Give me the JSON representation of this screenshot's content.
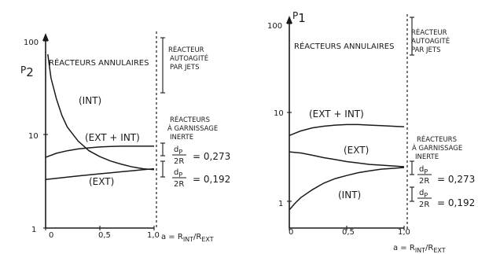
{
  "chart_data": [
    {
      "type": "line",
      "yscale": "log",
      "ylabel": "P",
      "ylabel_sub": "2",
      "xlabel": "a = R",
      "xlabel_sub1": "INT",
      "xlabel_mid": "/R",
      "xlabel_sub2": "EXT",
      "ylim": [
        1,
        100
      ],
      "xlim": [
        0,
        1.0
      ],
      "x_ticks": [
        "0",
        "0,5",
        "1,0"
      ],
      "y_ticks": [
        "1",
        "10",
        "100"
      ],
      "series": [
        {
          "name": "(INT)",
          "x": [
            0.02,
            0.05,
            0.1,
            0.15,
            0.2,
            0.3,
            0.4,
            0.5,
            0.6,
            0.7,
            0.8,
            0.9,
            1.0
          ],
          "values": [
            72,
            40,
            24,
            16,
            12,
            8.5,
            6.7,
            5.8,
            5.2,
            4.8,
            4.5,
            4.3,
            4.2
          ]
        },
        {
          "name": "(EXT + INT)",
          "x": [
            0.0,
            0.1,
            0.2,
            0.3,
            0.4,
            0.5,
            0.6,
            0.7,
            0.8,
            0.9,
            1.0
          ],
          "values": [
            5.7,
            6.3,
            6.7,
            7.0,
            7.2,
            7.35,
            7.45,
            7.5,
            7.5,
            7.5,
            7.5
          ]
        },
        {
          "name": "(EXT)",
          "x": [
            0.0,
            0.1,
            0.2,
            0.3,
            0.4,
            0.5,
            0.6,
            0.7,
            0.8,
            0.9,
            1.0
          ],
          "values": [
            3.3,
            3.4,
            3.5,
            3.6,
            3.7,
            3.8,
            3.9,
            4.0,
            4.1,
            4.2,
            4.3
          ]
        }
      ],
      "annotations": {
        "title_in_plot": "RÉACTEURS ANNULAIRES",
        "right_top": [
          "RÉACTEUR",
          "AUTOAGITÉ",
          "PAR JETS"
        ],
        "right_mid": [
          "RÉACTEURS",
          "À GARNISSAGE",
          "INERTE"
        ],
        "ratio_1": {
          "d": "d",
          "dsub": "P",
          "den": "2R",
          "value": "= 0,273"
        },
        "ratio_2": {
          "d": "d",
          "dsub": "P",
          "den": "2R",
          "value": "= 0,192"
        }
      }
    },
    {
      "type": "line",
      "yscale": "log",
      "ylabel": "P",
      "ylabel_sub": "1",
      "xlabel": "a = R",
      "xlabel_sub1": "INT",
      "xlabel_mid": "/R",
      "xlabel_sub2": "EXT",
      "ylim": [
        0.5,
        100
      ],
      "xlim": [
        0,
        1.0
      ],
      "x_ticks": [
        "0",
        "0,5",
        "1,0"
      ],
      "y_ticks": [
        "1",
        "10",
        "100"
      ],
      "series": [
        {
          "name": "(EXT + INT)",
          "x": [
            0.0,
            0.1,
            0.2,
            0.3,
            0.4,
            0.5,
            0.6,
            0.7,
            0.8,
            0.9,
            1.0
          ],
          "values": [
            5.5,
            6.2,
            6.7,
            7.0,
            7.2,
            7.3,
            7.3,
            7.2,
            7.1,
            7.0,
            6.9
          ]
        },
        {
          "name": "(EXT)",
          "x": [
            0.0,
            0.1,
            0.2,
            0.3,
            0.4,
            0.5,
            0.6,
            0.7,
            0.8,
            0.9,
            1.0
          ],
          "values": [
            3.6,
            3.5,
            3.3,
            3.1,
            2.95,
            2.8,
            2.7,
            2.6,
            2.55,
            2.5,
            2.45
          ]
        },
        {
          "name": "(INT)",
          "x": [
            0.0,
            0.05,
            0.1,
            0.2,
            0.3,
            0.4,
            0.5,
            0.6,
            0.7,
            0.8,
            0.9,
            1.0
          ],
          "values": [
            0.8,
            0.95,
            1.1,
            1.35,
            1.6,
            1.8,
            1.95,
            2.1,
            2.2,
            2.3,
            2.35,
            2.4
          ]
        }
      ],
      "annotations": {
        "title_in_plot": "RÉACTEURS ANNULAIRES",
        "right_top": [
          "RÉACTEUR",
          "AUTOAGITÉ",
          "PAR JETS"
        ],
        "right_mid": [
          "RÉACTEURS",
          "À GARNISSAGE",
          "INERTE"
        ],
        "ratio_1": {
          "d": "d",
          "dsub": "P",
          "den": "2R",
          "value": "= 0,273"
        },
        "ratio_2": {
          "d": "d",
          "dsub": "P",
          "den": "2R",
          "value": "= 0,192"
        }
      }
    }
  ]
}
